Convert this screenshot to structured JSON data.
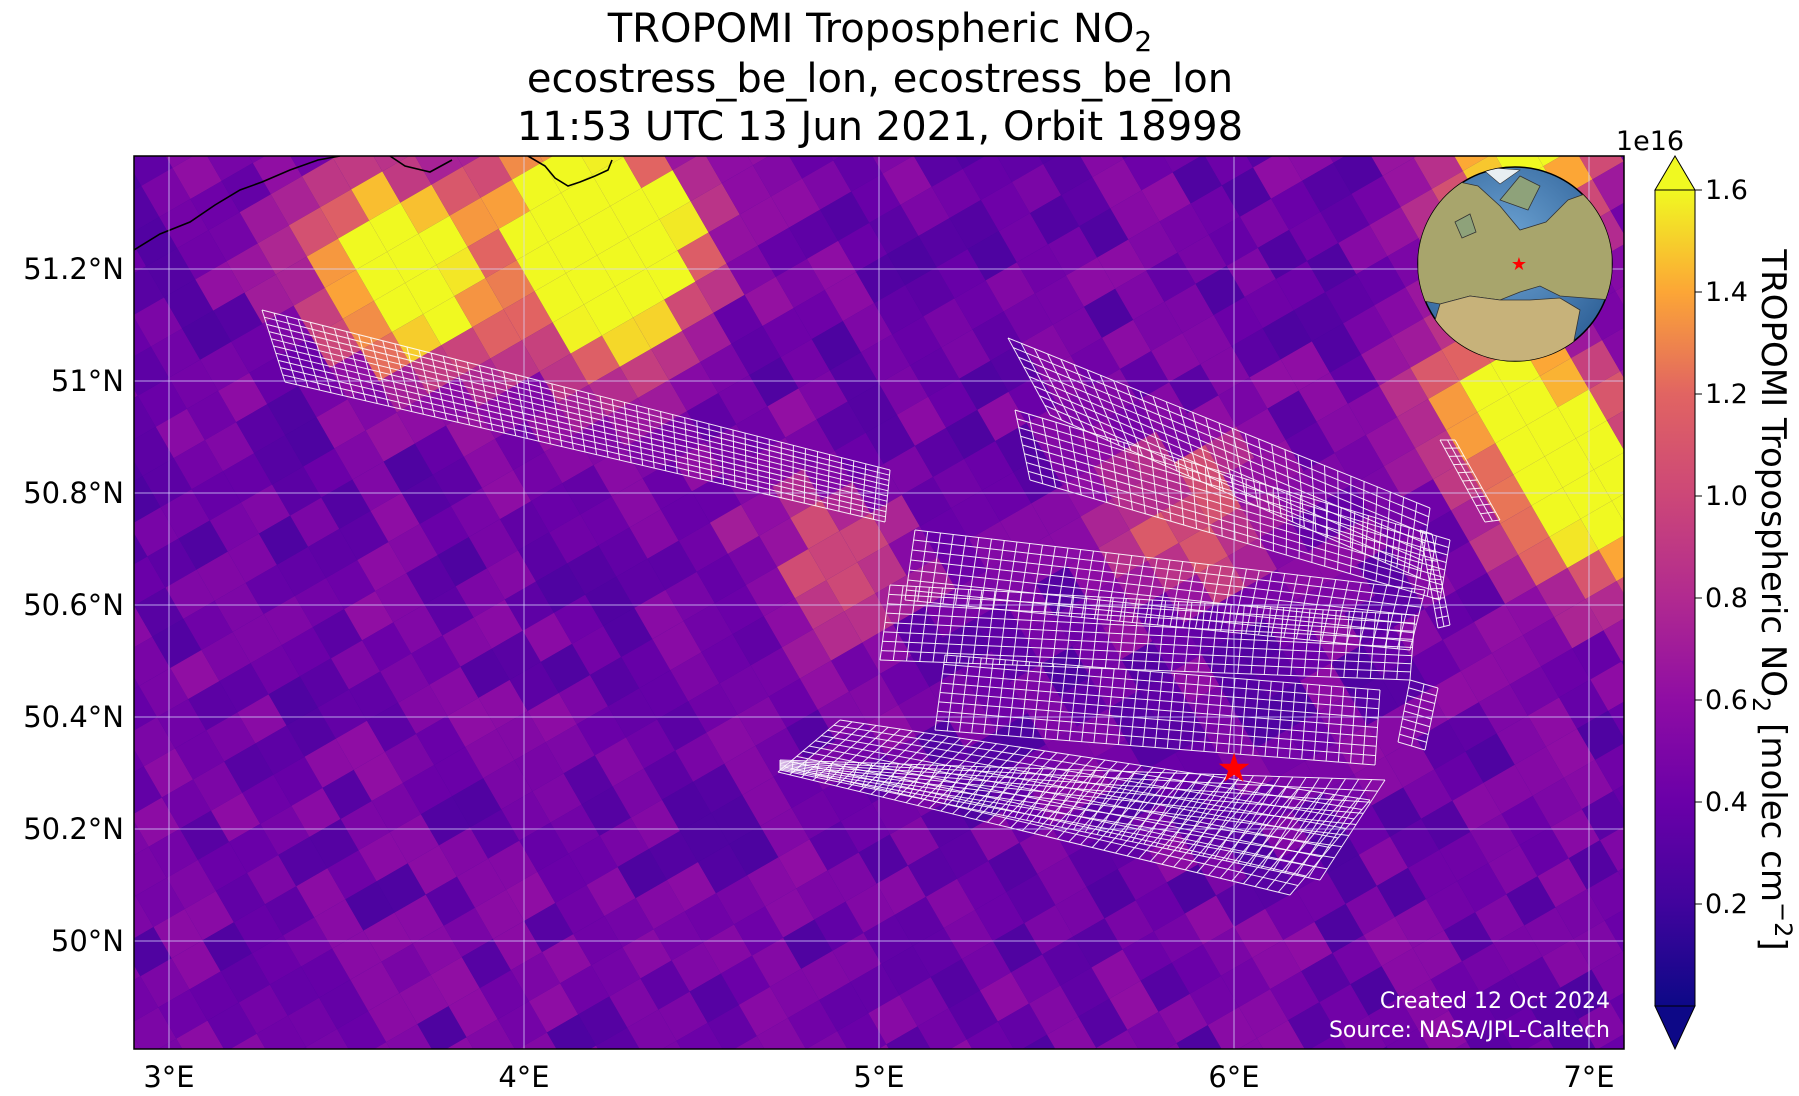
{
  "title": {
    "line1": "TROPOMI Tropospheric NO",
    "line1_sub": "2",
    "line2": "ecostress_be_lon, ecostress_be_lon",
    "line3": "11:53 UTC 13 Jun 2021, Orbit 18998"
  },
  "map": {
    "lon_range": [
      2.9,
      7.1
    ],
    "lat_range": [
      49.8,
      51.4
    ],
    "x_ticks": [
      {
        "value": 3,
        "label": "3°E"
      },
      {
        "value": 4,
        "label": "4°E"
      },
      {
        "value": 5,
        "label": "5°E"
      },
      {
        "value": 6,
        "label": "6°E"
      },
      {
        "value": 7,
        "label": "7°E"
      }
    ],
    "y_ticks": [
      {
        "value": 50.0,
        "label": "50°N"
      },
      {
        "value": 50.2,
        "label": "50.2°N"
      },
      {
        "value": 50.4,
        "label": "50.4°N"
      },
      {
        "value": 50.6,
        "label": "50.6°N"
      },
      {
        "value": 50.8,
        "label": "50.8°N"
      },
      {
        "value": 51.0,
        "label": "51°N"
      },
      {
        "value": 51.2,
        "label": "51.2°N"
      }
    ],
    "target_marker": {
      "lon": 6.0,
      "lat": 50.31,
      "color": "#ff0000"
    },
    "gridline_color": "#d8d8ff",
    "footprint_color": "#ffffff"
  },
  "colorbar": {
    "exponent_label": "1e16",
    "label_main": "TROPOMI Tropospheric NO",
    "label_sub": "2",
    "label_unit_a": " [molec cm",
    "label_unit_sup": "−2",
    "label_unit_b": "]",
    "min": 0.0,
    "max": 1.6,
    "extend": "both",
    "ticks": [
      {
        "value": 0.2,
        "label": "0.2"
      },
      {
        "value": 0.4,
        "label": "0.4"
      },
      {
        "value": 0.6,
        "label": "0.6"
      },
      {
        "value": 0.8,
        "label": "0.8"
      },
      {
        "value": 1.0,
        "label": "1.0"
      },
      {
        "value": 1.2,
        "label": "1.2"
      },
      {
        "value": 1.4,
        "label": "1.4"
      },
      {
        "value": 1.6,
        "label": "1.6"
      }
    ],
    "colormap": "plasma"
  },
  "credits": {
    "created": "Created 12 Oct 2024",
    "source": "Source: NASA/JPL-Caltech"
  },
  "inset_globe": {
    "marker_color": "#ff0000"
  }
}
